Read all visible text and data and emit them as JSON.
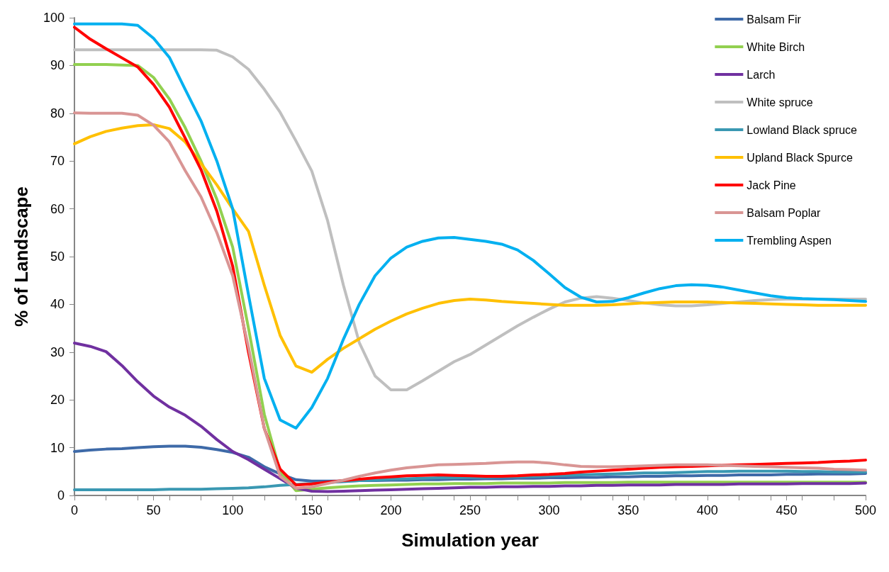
{
  "chart_data": {
    "type": "line",
    "xlabel": "Simulation year",
    "ylabel": "% of Landscape",
    "x": [
      0,
      10,
      20,
      30,
      40,
      50,
      60,
      70,
      80,
      90,
      100,
      110,
      120,
      130,
      140,
      150,
      160,
      170,
      180,
      190,
      200,
      210,
      220,
      230,
      240,
      250,
      260,
      270,
      280,
      290,
      300,
      310,
      320,
      330,
      340,
      350,
      360,
      370,
      380,
      390,
      400,
      410,
      420,
      430,
      440,
      450,
      460,
      470,
      480,
      490,
      500
    ],
    "xlim": [
      0,
      500
    ],
    "xticks": [
      0,
      50,
      100,
      150,
      200,
      250,
      300,
      350,
      400,
      450,
      500
    ],
    "ylim": [
      0,
      100
    ],
    "yticks": [
      0,
      10,
      20,
      30,
      40,
      50,
      60,
      70,
      80,
      90,
      100
    ],
    "grid": false,
    "legend": "top right",
    "marker": "none",
    "line_style": "solid",
    "series": [
      {
        "name": "Balsam Fir",
        "color": "#3e6aa8",
        "values": [
          9.2,
          9.5,
          9.7,
          9.8,
          10.0,
          10.2,
          10.3,
          10.3,
          10.1,
          9.6,
          9.0,
          8.0,
          6.0,
          4.5,
          3.3,
          3.0,
          3.0,
          3.0,
          3.1,
          3.1,
          3.2,
          3.2,
          3.3,
          3.3,
          3.4,
          3.4,
          3.5,
          3.5,
          3.6,
          3.6,
          3.7,
          3.7,
          3.8,
          3.8,
          3.9,
          3.9,
          4.0,
          4.0,
          4.1,
          4.1,
          4.2,
          4.2,
          4.3,
          4.3,
          4.3,
          4.4,
          4.4,
          4.5,
          4.5,
          4.5,
          4.6
        ]
      },
      {
        "name": "White Birch",
        "color": "#92d050",
        "values": [
          90.2,
          90.2,
          90.2,
          90.1,
          90.0,
          87.5,
          83,
          77,
          70,
          62,
          52,
          35,
          17,
          5,
          1.0,
          1.3,
          1.6,
          1.8,
          2.0,
          2.1,
          2.2,
          2.3,
          2.4,
          2.4,
          2.5,
          2.5,
          2.5,
          2.6,
          2.6,
          2.6,
          2.6,
          2.7,
          2.7,
          2.7,
          2.7,
          2.8,
          2.8,
          2.8,
          2.8,
          2.8,
          2.8,
          2.8,
          2.8,
          2.8,
          2.8,
          2.8,
          2.8,
          2.8,
          2.8,
          2.8,
          2.8
        ]
      },
      {
        "name": "Larch",
        "color": "#7030a0",
        "values": [
          31.9,
          31.2,
          30.1,
          27.2,
          23.8,
          20.8,
          18.5,
          16.8,
          14.5,
          11.7,
          9.2,
          7.5,
          5.5,
          3.5,
          1.5,
          0.9,
          0.8,
          0.9,
          1.0,
          1.1,
          1.2,
          1.3,
          1.4,
          1.5,
          1.6,
          1.7,
          1.7,
          1.8,
          1.8,
          1.9,
          1.9,
          2.0,
          2.0,
          2.1,
          2.1,
          2.2,
          2.2,
          2.2,
          2.3,
          2.3,
          2.3,
          2.3,
          2.4,
          2.4,
          2.4,
          2.4,
          2.5,
          2.5,
          2.5,
          2.5,
          2.6
        ]
      },
      {
        "name": "White spruce",
        "color": "#bfbfbf",
        "values": [
          93.3,
          93.3,
          93.3,
          93.3,
          93.3,
          93.3,
          93.3,
          93.3,
          93.3,
          93.2,
          91.8,
          89.2,
          85,
          80.2,
          74.2,
          67.9,
          57.5,
          44,
          32,
          25,
          22.1,
          22.1,
          24,
          26,
          28,
          29.5,
          31.5,
          33.5,
          35.5,
          37.3,
          39,
          40.5,
          41.3,
          41.6,
          41.3,
          40.8,
          40.3,
          39.9,
          39.7,
          39.7,
          39.9,
          40.2,
          40.5,
          40.8,
          41.0,
          41.1,
          41.1,
          41.1,
          41.1,
          41.1,
          41.1
        ]
      },
      {
        "name": "Lowland Black spruce",
        "color": "#3a98b2",
        "values": [
          1.2,
          1.2,
          1.2,
          1.2,
          1.2,
          1.2,
          1.3,
          1.3,
          1.3,
          1.4,
          1.5,
          1.6,
          1.8,
          2.1,
          2.3,
          2.5,
          2.7,
          2.9,
          3.1,
          3.2,
          3.4,
          3.5,
          3.6,
          3.7,
          3.7,
          3.8,
          3.8,
          3.9,
          3.9,
          4.0,
          4.1,
          4.2,
          4.3,
          4.4,
          4.5,
          4.6,
          4.7,
          4.7,
          4.8,
          4.9,
          5.0,
          5.0,
          5.1,
          5.1,
          5.1,
          5.1,
          5.0,
          5.0,
          4.9,
          4.9,
          4.9
        ]
      },
      {
        "name": "Upland Black Spurce",
        "color": "#ffc000",
        "values": [
          73.6,
          75.1,
          76.2,
          76.9,
          77.4,
          77.6,
          76.8,
          74,
          69.5,
          65,
          60,
          55.3,
          44,
          33.5,
          27.1,
          25.8,
          28.5,
          30.8,
          32.8,
          34.8,
          36.5,
          38,
          39.2,
          40.2,
          40.8,
          41.1,
          40.9,
          40.6,
          40.4,
          40.2,
          40.0,
          39.8,
          39.8,
          39.8,
          39.9,
          40.1,
          40.3,
          40.4,
          40.5,
          40.5,
          40.5,
          40.4,
          40.3,
          40.2,
          40.1,
          40.0,
          39.9,
          39.8,
          39.8,
          39.8,
          39.8
        ]
      },
      {
        "name": "Jack Pine",
        "color": "#ff0000",
        "values": [
          98,
          95.5,
          93.5,
          91.6,
          89.7,
          86,
          81.3,
          74.8,
          68.2,
          59.5,
          48,
          30,
          14,
          5.5,
          2.2,
          2.4,
          2.8,
          3.1,
          3.4,
          3.7,
          3.9,
          4.1,
          4.2,
          4.3,
          4.2,
          4.1,
          4.0,
          4.0,
          4.1,
          4.3,
          4.4,
          4.6,
          4.9,
          5.1,
          5.3,
          5.5,
          5.7,
          5.9,
          6.0,
          6.1,
          6.2,
          6.3,
          6.4,
          6.5,
          6.6,
          6.7,
          6.8,
          6.9,
          7.1,
          7.2,
          7.4
        ]
      },
      {
        "name": "Balsam Poplar",
        "color": "#d99594",
        "values": [
          80.1,
          80,
          80,
          80,
          79.6,
          77.5,
          74,
          68,
          62.5,
          55,
          46,
          31,
          14,
          4,
          1.5,
          1.8,
          2.5,
          3.2,
          4.0,
          4.7,
          5.3,
          5.8,
          6.1,
          6.4,
          6.5,
          6.6,
          6.7,
          6.9,
          7.0,
          7.0,
          6.8,
          6.4,
          6.1,
          6.0,
          6.0,
          6.1,
          6.2,
          6.3,
          6.4,
          6.4,
          6.4,
          6.3,
          6.2,
          6.1,
          6.0,
          5.9,
          5.8,
          5.7,
          5.5,
          5.4,
          5.3
        ]
      },
      {
        "name": "Trembling Aspen",
        "color": "#00b0f0",
        "values": [
          98.7,
          98.7,
          98.7,
          98.7,
          98.4,
          95.7,
          91.7,
          85,
          78.4,
          70,
          60,
          42,
          24.5,
          15.8,
          14.1,
          18.4,
          24.5,
          32.7,
          40,
          46,
          49.7,
          52,
          53.2,
          53.9,
          54,
          53.6,
          53.2,
          52.6,
          51.4,
          49.2,
          46.4,
          43.5,
          41.5,
          40.5,
          40.6,
          41.4,
          42.4,
          43.3,
          43.9,
          44.1,
          44.0,
          43.6,
          43.0,
          42.4,
          41.8,
          41.4,
          41.2,
          41.1,
          41.0,
          40.8,
          40.6
        ]
      }
    ]
  }
}
